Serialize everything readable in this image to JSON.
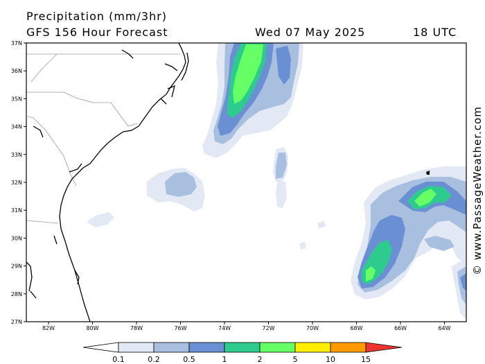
{
  "header": {
    "title": "Precipitation (mm/3hr)",
    "forecast": "GFS 156 Hour Forecast",
    "date": "Wed 07 May 2025",
    "time": "18 UTC"
  },
  "watermark": "© www.PassageWeather.com",
  "map": {
    "lat_labels": [
      "37N",
      "36N",
      "35N",
      "34N",
      "33N",
      "32N",
      "31N",
      "30N",
      "29N",
      "28N",
      "27N"
    ],
    "lon_labels": [
      "82W",
      "80W",
      "78W",
      "76W",
      "74W",
      "72W",
      "70W",
      "68W",
      "66W",
      "64W"
    ]
  },
  "legend": {
    "ticks": [
      "0.1",
      "0.2",
      "0.5",
      "1",
      "2",
      "5",
      "10",
      "15"
    ],
    "colors": [
      "#ffffff",
      "#e2e9f5",
      "#a9bfe0",
      "#6a90d3",
      "#2ecb8f",
      "#66ff66",
      "#ffee00",
      "#ff9900",
      "#ee3333"
    ]
  },
  "colors": {
    "level1": "#e2e9f5",
    "level2": "#a9bfe0",
    "level3": "#6a90d3",
    "level4": "#2ecb8f",
    "level5": "#66ff66"
  }
}
